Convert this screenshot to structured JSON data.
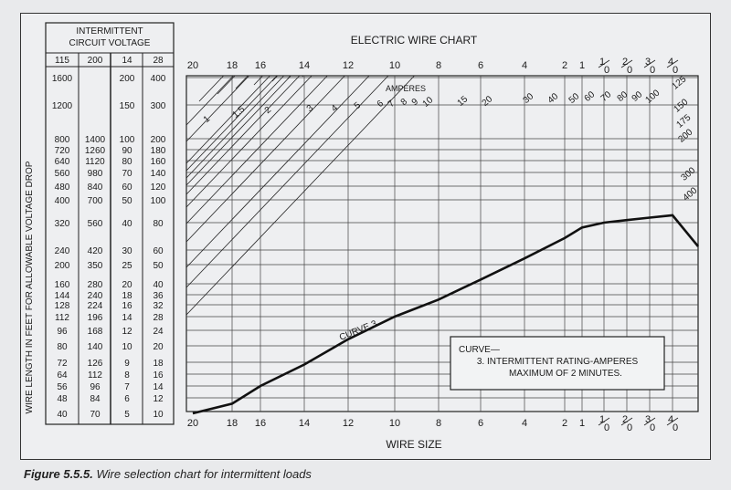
{
  "chart_data": {
    "type": "line",
    "title": "ELECTRIC WIRE CHART",
    "xlabel": "WIRE SIZE",
    "ylabel": "WIRE LENGTH IN FEET FOR ALLOWABLE VOLTAGE DROP",
    "table_header": "INTERMITTENT CIRCUIT VOLTAGE",
    "voltage_columns": [
      "115",
      "200",
      "14",
      "28"
    ],
    "length_rows": [
      {
        "v115": "1600",
        "v200": "",
        "v14": "200",
        "v28": "400"
      },
      {
        "v115": "1200",
        "v200": "",
        "v14": "150",
        "v28": "300"
      },
      {
        "v115": "800",
        "v200": "1400",
        "v14": "100",
        "v28": "200"
      },
      {
        "v115": "720",
        "v200": "1260",
        "v14": "90",
        "v28": "180"
      },
      {
        "v115": "640",
        "v200": "1120",
        "v14": "80",
        "v28": "160"
      },
      {
        "v115": "560",
        "v200": "980",
        "v14": "70",
        "v28": "140"
      },
      {
        "v115": "480",
        "v200": "840",
        "v14": "60",
        "v28": "120"
      },
      {
        "v115": "400",
        "v200": "700",
        "v14": "50",
        "v28": "100"
      },
      {
        "v115": "320",
        "v200": "560",
        "v14": "40",
        "v28": "80"
      },
      {
        "v115": "240",
        "v200": "420",
        "v14": "30",
        "v28": "60"
      },
      {
        "v115": "200",
        "v200": "350",
        "v14": "25",
        "v28": "50"
      },
      {
        "v115": "160",
        "v200": "280",
        "v14": "20",
        "v28": "40"
      },
      {
        "v115": "144",
        "v200": "240",
        "v14": "18",
        "v28": "36"
      },
      {
        "v115": "128",
        "v200": "224",
        "v14": "16",
        "v28": "32"
      },
      {
        "v115": "112",
        "v200": "196",
        "v14": "14",
        "v28": "28"
      },
      {
        "v115": "96",
        "v200": "168",
        "v14": "12",
        "v28": "24"
      },
      {
        "v115": "80",
        "v200": "140",
        "v14": "10",
        "v28": "20"
      },
      {
        "v115": "72",
        "v200": "126",
        "v14": "9",
        "v28": "18"
      },
      {
        "v115": "64",
        "v200": "112",
        "v14": "8",
        "v28": "16"
      },
      {
        "v115": "56",
        "v200": "96",
        "v14": "7",
        "v28": "14"
      },
      {
        "v115": "48",
        "v200": "84",
        "v14": "6",
        "v28": "12"
      },
      {
        "v115": "40",
        "v200": "70",
        "v14": "5",
        "v28": "10"
      }
    ],
    "wire_sizes": [
      {
        "label": "20"
      },
      {
        "label": "18"
      },
      {
        "label": "16"
      },
      {
        "label": "14"
      },
      {
        "label": "12"
      },
      {
        "label": "10"
      },
      {
        "label": "8"
      },
      {
        "label": "6"
      },
      {
        "label": "4"
      },
      {
        "label": "2"
      },
      {
        "label": "1"
      },
      {
        "label": "1/0",
        "num": "1",
        "den": "0"
      },
      {
        "label": "2/0",
        "num": "2",
        "den": "0"
      },
      {
        "label": "3/0",
        "num": "3",
        "den": "0"
      },
      {
        "label": "4/0",
        "num": "4",
        "den": "0"
      }
    ],
    "amperes_label": "AMPERES",
    "ampere_lines": [
      "1",
      "1.5",
      "2",
      "3",
      "4",
      "5",
      "6",
      "7",
      "8",
      "9",
      "10",
      "15",
      "20",
      "30",
      "40",
      "50",
      "60",
      "70",
      "80",
      "90",
      "100",
      "125",
      "150",
      "175",
      "200",
      "300",
      "400"
    ],
    "curve": {
      "label": "CURVE 3",
      "points": [
        [
          20,
          5
        ],
        [
          18,
          5.6
        ],
        [
          16,
          7
        ],
        [
          14,
          8.8
        ],
        [
          12,
          10.8
        ],
        [
          10,
          14
        ],
        [
          8,
          17
        ],
        [
          6,
          21
        ],
        [
          4,
          27
        ],
        [
          2,
          34
        ],
        [
          1,
          38
        ],
        [
          "1/0",
          40
        ],
        [
          "2/0",
          41
        ],
        [
          "3/0",
          42
        ],
        [
          "4/0",
          43
        ]
      ]
    },
    "legend": {
      "heading": "CURVE—",
      "line1": "3. INTERMITTENT RATING-AMPERES",
      "line2": "MAXIMUM OF 2 MINUTES."
    },
    "caption_label": "Figure 5.5.5.",
    "caption_text": "Wire selection chart for intermittent loads"
  }
}
